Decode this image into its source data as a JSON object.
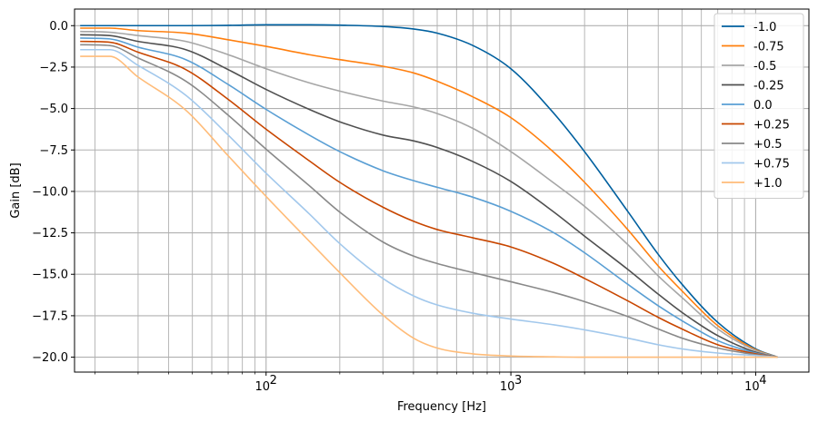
{
  "chart_data": {
    "type": "line",
    "title": "",
    "xlabel": "Frequency [Hz]",
    "ylabel": "Gain [dB]",
    "xscale": "log",
    "xlim": [
      16.5,
      16500
    ],
    "ylim": [
      -20.9,
      1.0
    ],
    "grid": true,
    "legend_position": "top-right",
    "x_major_ticks": [
      {
        "value": 100,
        "label": "10",
        "exp": "2"
      },
      {
        "value": 1000,
        "label": "10",
        "exp": "3"
      },
      {
        "value": 10000,
        "label": "10",
        "exp": "4"
      }
    ],
    "y_ticks": [
      {
        "value": 0,
        "label": "0.0"
      },
      {
        "value": -2.5,
        "label": "−2.5"
      },
      {
        "value": -5,
        "label": "−5.0"
      },
      {
        "value": -7.5,
        "label": "−7.5"
      },
      {
        "value": -10,
        "label": "−10.0"
      },
      {
        "value": -12.5,
        "label": "−12.5"
      },
      {
        "value": -15,
        "label": "−15.0"
      },
      {
        "value": -17.5,
        "label": "−17.5"
      },
      {
        "value": -20,
        "label": "−20.0"
      }
    ],
    "x": [
      17.4,
      23,
      30,
      47,
      70,
      100,
      150,
      200,
      300,
      400,
      500,
      700,
      1000,
      1500,
      2000,
      3000,
      4000,
      5000,
      7000,
      10000,
      12300
    ],
    "series": [
      {
        "name": "-1.0",
        "color": "#00609f",
        "values": [
          0,
          0,
          0,
          0,
          0.02,
          0.05,
          0.05,
          0.03,
          -0.05,
          -0.2,
          -0.45,
          -1.2,
          -2.6,
          -5.3,
          -7.6,
          -11.2,
          -13.8,
          -15.6,
          -17.9,
          -19.5,
          -20
        ]
      },
      {
        "name": "-0.75",
        "color": "#ff7f0e",
        "values": [
          -0.15,
          -0.15,
          -0.3,
          -0.45,
          -0.85,
          -1.25,
          -1.75,
          -2.05,
          -2.45,
          -2.85,
          -3.35,
          -4.3,
          -5.55,
          -7.65,
          -9.45,
          -12.3,
          -14.5,
          -16.0,
          -18.1,
          -19.55,
          -20
        ]
      },
      {
        "name": "-0.5",
        "color": "#a6a6a6",
        "values": [
          -0.35,
          -0.4,
          -0.6,
          -0.95,
          -1.75,
          -2.6,
          -3.45,
          -3.95,
          -4.55,
          -4.9,
          -5.3,
          -6.2,
          -7.6,
          -9.5,
          -10.9,
          -13.2,
          -15.1,
          -16.4,
          -18.3,
          -19.6,
          -20
        ]
      },
      {
        "name": "-0.25",
        "color": "#505050",
        "values": [
          -0.55,
          -0.6,
          -0.95,
          -1.45,
          -2.65,
          -3.85,
          -5.05,
          -5.8,
          -6.6,
          -6.95,
          -7.35,
          -8.2,
          -9.4,
          -11.25,
          -12.7,
          -14.7,
          -16.2,
          -17.3,
          -18.7,
          -19.7,
          -20
        ]
      },
      {
        "name": "0.0",
        "color": "#5a9fd4",
        "values": [
          -0.75,
          -0.8,
          -1.3,
          -2.05,
          -3.55,
          -5.05,
          -6.6,
          -7.6,
          -8.75,
          -9.35,
          -9.75,
          -10.35,
          -11.2,
          -12.5,
          -13.7,
          -15.6,
          -16.9,
          -17.8,
          -19.0,
          -19.75,
          -20
        ]
      },
      {
        "name": "+0.25",
        "color": "#c84600",
        "values": [
          -0.95,
          -1.0,
          -1.6,
          -2.65,
          -4.45,
          -6.25,
          -8.15,
          -9.45,
          -10.95,
          -11.8,
          -12.3,
          -12.8,
          -13.35,
          -14.35,
          -15.25,
          -16.6,
          -17.6,
          -18.3,
          -19.25,
          -19.8,
          -20
        ]
      },
      {
        "name": "+0.5",
        "color": "#898989",
        "values": [
          -1.15,
          -1.2,
          -1.95,
          -3.35,
          -5.4,
          -7.45,
          -9.65,
          -11.25,
          -13.05,
          -13.9,
          -14.35,
          -14.9,
          -15.45,
          -16.1,
          -16.65,
          -17.55,
          -18.3,
          -18.85,
          -19.45,
          -19.85,
          -20
        ]
      },
      {
        "name": "+0.75",
        "color": "#a2c8ec",
        "values": [
          -1.45,
          -1.45,
          -2.4,
          -4.2,
          -6.6,
          -8.9,
          -11.35,
          -13.15,
          -15.25,
          -16.3,
          -16.85,
          -17.35,
          -17.7,
          -18.05,
          -18.35,
          -18.85,
          -19.25,
          -19.5,
          -19.75,
          -19.9,
          -20
        ]
      },
      {
        "name": "+1.0",
        "color": "#ffbc79",
        "values": [
          -1.85,
          -1.85,
          -3.1,
          -5.1,
          -7.85,
          -10.3,
          -13.0,
          -14.9,
          -17.45,
          -18.85,
          -19.45,
          -19.8,
          -19.93,
          -19.98,
          -20,
          -20,
          -20,
          -20,
          -20,
          -20,
          -20
        ]
      }
    ]
  }
}
